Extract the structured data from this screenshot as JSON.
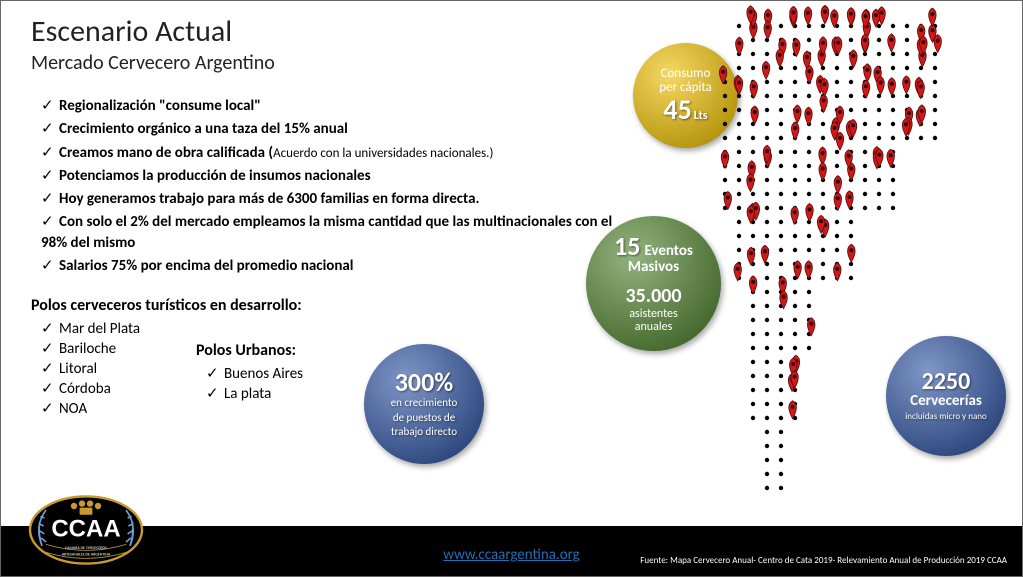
{
  "title": "Escenario Actual",
  "subtitle": "Mercado Cervecero Argentino",
  "bullets": [
    {
      "bold": true,
      "text": "Regionalización \"consume local\""
    },
    {
      "bold": true,
      "text": "Crecimiento orgánico a una taza del 15% anual"
    },
    {
      "bold": true,
      "text": "Creamos mano de obra calificada (",
      "tail": "Acuerdo con la universidades nacionales.)"
    },
    {
      "bold": true,
      "text": "Potenciamos la producción de insumos nacionales"
    },
    {
      "bold": true,
      "text": "Hoy generamos trabajo para más de 6300 familias en forma directa."
    },
    {
      "bold": true,
      "text": "Con solo el 2% del mercado empleamos la misma cantidad que las multinacionales con el 98% del mismo"
    },
    {
      "bold": true,
      "text": "Salarios 75% por  encima del promedio nacional"
    }
  ],
  "polos_title": "Polos cerveceros turísticos en desarrollo:",
  "polos": [
    "Mar del Plata",
    "Bariloche",
    "Litoral",
    "Córdoba",
    "NOA"
  ],
  "urbanos_title": "Polos Urbanos:",
  "urbanos": [
    "Buenos Aires",
    "La plata"
  ],
  "circle_yellow": {
    "line1a": "Consumo",
    "line1b": "per cápita",
    "value": "45",
    "unit": "Lts",
    "color": "#f1c40f"
  },
  "circle_green": {
    "v1": "15",
    "l1": "Eventos",
    "l1b": "Masivos",
    "v2": "35.000",
    "l2a": "asistentes",
    "l2b": "anuales",
    "color": "#5a8a3a"
  },
  "circle_blue1": {
    "value": "300%",
    "l1": "en crecimiento",
    "l2": "de puestos de",
    "l3": "trabajo directo",
    "color": "#3b5ea8"
  },
  "circle_blue2": {
    "value": "2250",
    "l1": "Cervecerías",
    "l2": "incluidas micro y nano",
    "color": "#3b5ea8"
  },
  "map": {
    "dot_color": "#000000",
    "pin_fill": "#d01818",
    "pin_stroke": "#5a0a0a",
    "dot_grid": {
      "cols": 18,
      "rows": 34,
      "step": 14
    },
    "outline_mask": "argentina",
    "pin_count_approx": 110
  },
  "footer": {
    "url": "www.ccaargentina.org",
    "source": "Fuente: Mapa Cervecero Anual- Centro de Cata 2019- Relevamiento Anual de Producción 2019 CCAA"
  },
  "logo": {
    "text": "CCAA",
    "subline1": "CAMARA DE CERVECEROS",
    "subline2": "ARTESANALES DE ARGENTINA",
    "border_color": "#c79a2e",
    "wheat_color": "#6fa3d8",
    "hop_color": "#c79a2e"
  }
}
